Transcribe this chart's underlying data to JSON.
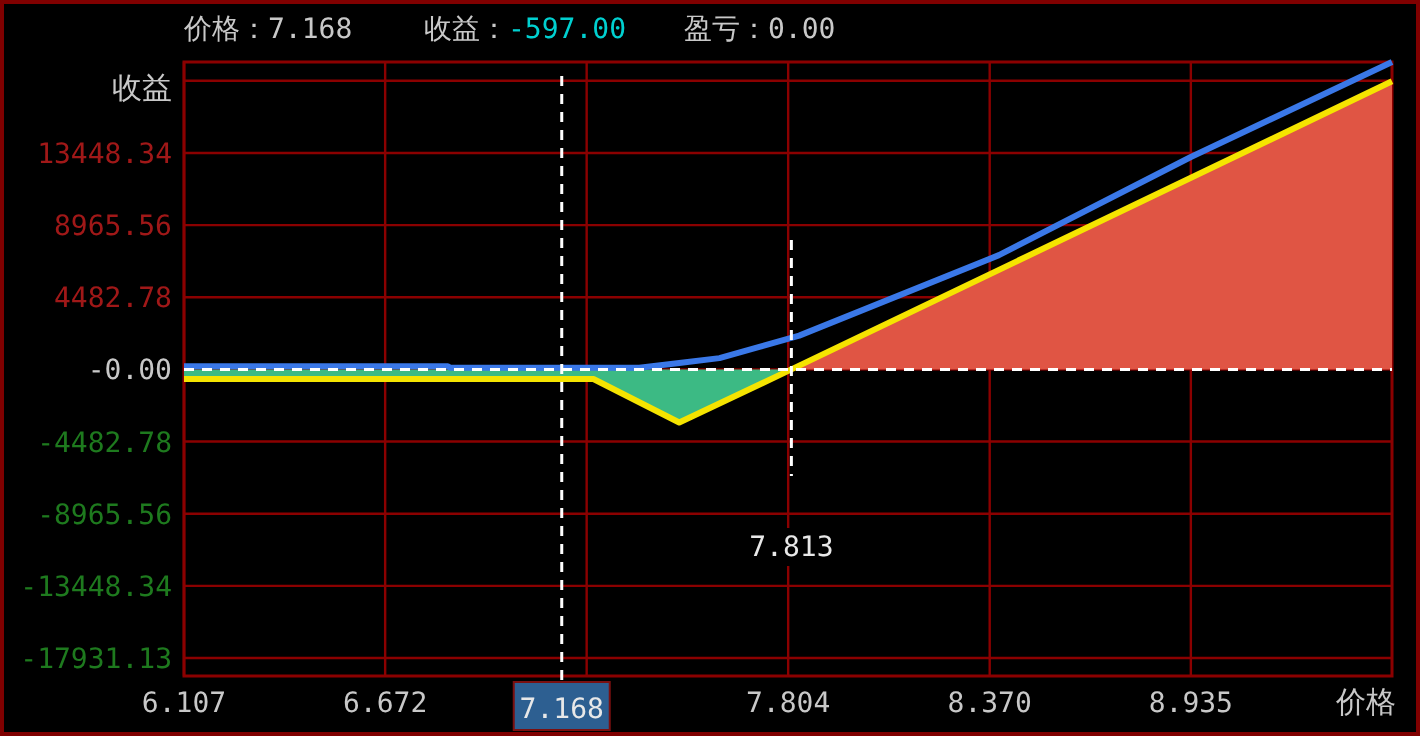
{
  "chart_data": {
    "type": "line",
    "xlabel": "价格",
    "ylabel": "收益",
    "annotations": [
      "价格：7.168",
      "收益：-597.00",
      "盈亏：0.00"
    ],
    "xlim": [
      6.107,
      9.5
    ],
    "ylim": [
      -19050,
      19100
    ],
    "xticks": [
      6.107,
      6.672,
      {
        "value": 7.238,
        "label": null
      },
      7.804,
      {
        "value": 8.37,
        "label": "8.370"
      },
      8.935
    ],
    "yticks": [
      {
        "value": 17931.13,
        "label": null
      },
      13448.34,
      8965.56,
      4482.78,
      {
        "value": 0,
        "label": "-0.00"
      },
      -4482.78,
      -8965.56,
      -13448.34,
      -17931.13
    ],
    "grid": true,
    "series": [
      {
        "type": "area",
        "color": "#3cba84",
        "x": [
          6.107,
          7.257,
          7.498,
          7.813
        ],
        "values": [
          -597,
          -597,
          -3300,
          0
        ]
      },
      {
        "type": "area",
        "color": "#e05544",
        "x": [
          7.813,
          9.5
        ],
        "values": [
          0,
          17900
        ]
      },
      {
        "color": "#3a78e8",
        "x": [
          6.107,
          6.848,
          6.855,
          7.386,
          7.498,
          7.611,
          7.723,
          7.835,
          8.396,
          8.935,
          9.5
        ],
        "values": [
          200,
          200,
          100,
          100,
          400,
          700,
          1400,
          2100,
          7100,
          13200,
          19100
        ]
      },
      {
        "color": "#f5e400",
        "x": [
          6.107,
          7.257,
          7.498,
          7.813,
          9.5
        ],
        "values": [
          -597,
          -597,
          -3300,
          0,
          17900
        ]
      }
    ],
    "ref_lines": [
      {
        "axis": "y",
        "value": 0,
        "label": null,
        "color": "#ffffff",
        "line_style": "dashed"
      },
      {
        "axis": "x",
        "value": 7.168,
        "label": "7.168",
        "color": "#ffffff",
        "line_style": "dashed"
      },
      {
        "axis": "x",
        "value": 7.813,
        "label": "7.813",
        "color": "#ffffff",
        "line_style": "dashed"
      }
    ]
  }
}
